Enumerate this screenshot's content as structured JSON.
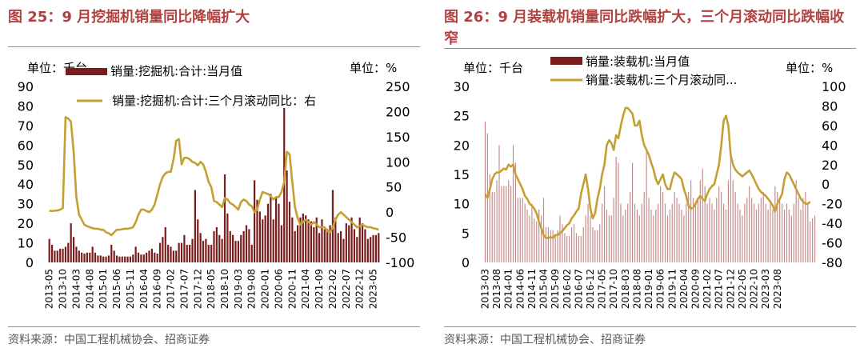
{
  "panels": [
    {
      "title": "图 25：9 月挖掘机销量同比降幅扩大",
      "source": "资料来源：中国工程机械协会、招商证券",
      "unit_left": "单位：千台",
      "unit_right": "单位：%",
      "legend": [
        "销量:挖掘机:合计:当月值",
        "销量:挖掘机:合计:三个月滚动同比：右"
      ]
    },
    {
      "title": "图 26：9 月装载机销量同比跌幅扩大，三个月滚动同比跌幅收窄",
      "source": "资料来源：中国工程机械协会、招商证券",
      "unit_left": "单位：千台",
      "unit_right": "单位：%",
      "legend": [
        "销量:装载机:当月值",
        "销量:装载机:三个月滚动同..."
      ]
    }
  ],
  "chart_data": [
    {
      "type": "bar",
      "title": "9 月挖掘机销量同比降幅扩大",
      "series": [
        {
          "name": "销量:挖掘机:合计:当月值",
          "axis": "left",
          "values": [
            12.0,
            9.0,
            6.0,
            6.0,
            7.0,
            7.0,
            8.0,
            10.0,
            20.0,
            13.0,
            8.0,
            6.0,
            5.0,
            4.5,
            5.0,
            5.0,
            8.0,
            5.0,
            3.5,
            3.5,
            3.0,
            3.0,
            3.5,
            9.0,
            6.0,
            3.5,
            3.0,
            3.0,
            3.0,
            3.0,
            3.0,
            4.0,
            8.0,
            5.0,
            4.0,
            4.0,
            5.0,
            6.0,
            7.0,
            5.0,
            4.5,
            10.0,
            13.0,
            18.0,
            9.0,
            8.0,
            6.0,
            6.0,
            10.0,
            10.0,
            14.0,
            9.0,
            9.0,
            12.0,
            37.0,
            22.0,
            15.0,
            11.0,
            12.0,
            9.0,
            9.0,
            16.0,
            18.0,
            14.0,
            12.0,
            45.0,
            25.0,
            16.0,
            14.0,
            11.0,
            11.0,
            14.0,
            16.0,
            19.0,
            17.0,
            9.0,
            42.0,
            32.0,
            26.0,
            22.0,
            24.0,
            30.0,
            35.0,
            22.0,
            33.0,
            30.0,
            19.0,
            79.0,
            47.0,
            31.0,
            23.0,
            16.0,
            19.0,
            23.0,
            25.0,
            24.0,
            22.0,
            21.0,
            18.0,
            23.0,
            15.0,
            22.0,
            17.0,
            17.0,
            19.0,
            37.0,
            23.0,
            15.0,
            16.0,
            12.0,
            20.0,
            19.0,
            23.0,
            17.0,
            13.0,
            23.0,
            20.0,
            17.0,
            12.0,
            13.0,
            14.0,
            14.0,
            15.0
          ]
        },
        {
          "name": "销量:挖掘机:合计:三个月滚动同比：右",
          "axis": "right",
          "values": [
            3.0,
            2.0,
            3.0,
            3.0,
            5.0,
            8.0,
            189.0,
            186.0,
            180.0,
            120.0,
            30.0,
            -5.0,
            -15.0,
            -25.0,
            -28.0,
            -30.0,
            -32.0,
            -33.0,
            -33.0,
            -35.0,
            -35.0,
            -40.0,
            -42.0,
            -46.0,
            -40.0,
            -35.0,
            -35.0,
            -34.0,
            -33.0,
            -33.0,
            -32.0,
            -30.0,
            -20.0,
            -5.0,
            5.0,
            5.0,
            2.0,
            0.0,
            5.0,
            15.0,
            35.0,
            55.0,
            70.0,
            77.0,
            80.0,
            80.0,
            105.0,
            142.0,
            145.0,
            95.0,
            108.0,
            108.0,
            105.0,
            100.0,
            98.0,
            93.0,
            100.0,
            95.0,
            80.0,
            60.0,
            50.0,
            22.0,
            20.0,
            15.0,
            10.0,
            28.0,
            25.0,
            18.0,
            15.0,
            10.0,
            5.0,
            20.0,
            25.0,
            22.0,
            15.0,
            12.0,
            0.0,
            5.0,
            25.0,
            40.0,
            38.0,
            36.0,
            32.0,
            25.0,
            30.0,
            30.0,
            40.0,
            60.0,
            120.0,
            115.0,
            60.0,
            10.0,
            -12.0,
            -25.0,
            -20.0,
            -15.0,
            -20.0,
            -25.0,
            -20.0,
            -25.0,
            -30.0,
            -30.0,
            -30.0,
            -38.0,
            -40.0,
            -30.0,
            -15.0,
            -5.0,
            0.0,
            -5.0,
            -10.0,
            -15.0,
            -20.0,
            -25.0,
            -30.0,
            -28.0,
            -25.0,
            -28.0,
            -30.0,
            -30.0,
            -32.0,
            -33.0,
            -35.0
          ]
        }
      ],
      "x_tick_labels": [
        "2013-05",
        "2013-10",
        "2014-03",
        "2014-08",
        "2015-01",
        "2015-06",
        "2015-11",
        "2016-04",
        "2016-09",
        "2017-02",
        "2017-07",
        "2017-12",
        "2018-05",
        "2018-10",
        "2019-03",
        "2019-08",
        "2020-01",
        "2020-06",
        "2020-11",
        "2021-04",
        "2021-09",
        "2022-02",
        "2022-07",
        "2022-12",
        "2023-05"
      ],
      "x_tick_interval_months": 5,
      "left_axis": {
        "ylim": [
          0,
          90
        ],
        "ticks": [
          0,
          10,
          20,
          30,
          40,
          50,
          60,
          70,
          80,
          90
        ]
      },
      "right_axis": {
        "ylim": [
          -100,
          250
        ],
        "ticks": [
          -100,
          -50,
          0,
          50,
          100,
          150,
          200,
          250
        ],
        "negative_tick_color": "#ff0000"
      },
      "colors": {
        "bars": "#7b1c1c",
        "line": "#c4a032"
      }
    },
    {
      "type": "bar",
      "title": "9 月装载机销量同比跌幅扩大，三个月滚动同比跌幅收窄",
      "series": [
        {
          "name": "销量:装载机:当月值",
          "axis": "left",
          "values": [
            24.0,
            22.0,
            15.0,
            12.0,
            12.0,
            14.0,
            20.0,
            13.0,
            13.0,
            13.0,
            14.0,
            13.0,
            20.0,
            17.0,
            11.0,
            11.0,
            11.0,
            10.0,
            9.0,
            8.0,
            10.0,
            7.5,
            7.0,
            9.0,
            8.0,
            11.0,
            6.0,
            6.0,
            5.5,
            5.5,
            4.5,
            5.5,
            8.0,
            6.5,
            5.0,
            4.5,
            4.5,
            6.0,
            6.5,
            5.0,
            4.5,
            4.5,
            6.0,
            8.0,
            10.0,
            8.0,
            6.0,
            5.5,
            5.5,
            6.5,
            10.0,
            13.0,
            9.0,
            8.0,
            8.0,
            11.0,
            18.0,
            17.0,
            10.0,
            8.0,
            9.0,
            10.0,
            12.0,
            17.0,
            10.0,
            9.0,
            8.0,
            10.0,
            12.0,
            19.0,
            11.0,
            9.0,
            8.0,
            9.0,
            10.0,
            13.0,
            12.0,
            10.0,
            8.0,
            9.0,
            10.0,
            12.0,
            11.0,
            10.0,
            9.0,
            8.0,
            10.0,
            12.0,
            14.0,
            11.0,
            10.0,
            11.0,
            14.0,
            16.0,
            13.0,
            10.0,
            11.0,
            10.0,
            9.0,
            11.0,
            13.0,
            12.0,
            10.0,
            9.0,
            14.0,
            18.0,
            14.0,
            12.0,
            10.0,
            9.0,
            8.0,
            10.0,
            11.0,
            13.0,
            11.0,
            10.0,
            9.0,
            10.0,
            11.0,
            12.0,
            10.0,
            9.0,
            10.0,
            9.0,
            13.0,
            12.0,
            11.0,
            10.0,
            9.0,
            10.0,
            9.0,
            8.0,
            10.0,
            14.0,
            11.0,
            9.0,
            11.0,
            12.0,
            10.0,
            7.0,
            7.5,
            8.0
          ]
        },
        {
          "name": "销量:装载机:三个月滚动同...",
          "axis": "right",
          "values": [
            -10.0,
            -14.0,
            -5.0,
            5.0,
            10.0,
            12.0,
            12.0,
            14.0,
            16.0,
            15.0,
            20.0,
            18.0,
            20.0,
            10.0,
            5.0,
            0.0,
            -5.0,
            -12.0,
            -15.0,
            -20.0,
            -22.0,
            -25.0,
            -30.0,
            -38.0,
            -45.0,
            -52.0,
            -55.0,
            -55.0,
            -54.0,
            -55.0,
            -52.0,
            -52.0,
            -50.0,
            -48.0,
            -45.0,
            -42.0,
            -40.0,
            -35.0,
            -32.0,
            -28.0,
            -25.0,
            -10.0,
            0.0,
            10.0,
            -5.0,
            -25.0,
            -35.0,
            -30.0,
            -15.0,
            -5.0,
            10.0,
            20.0,
            40.0,
            45.0,
            42.0,
            35.0,
            50.0,
            47.0,
            60.0,
            70.0,
            78.0,
            78.0,
            75.0,
            72.0,
            60.0,
            60.0,
            65.0,
            50.0,
            40.0,
            35.0,
            30.0,
            22.0,
            15.0,
            5.0,
            0.0,
            5.0,
            10.0,
            0.0,
            -5.0,
            -5.0,
            5.0,
            12.0,
            10.0,
            8.0,
            5.0,
            -5.0,
            -12.0,
            -22.0,
            -25.0,
            -24.0,
            -20.0,
            -15.0,
            -12.0,
            -15.0,
            -17.0,
            -10.0,
            -5.0,
            -2.0,
            0.0,
            10.0,
            20.0,
            40.0,
            65.0,
            70.0,
            60.0,
            30.0,
            20.0,
            15.0,
            12.0,
            10.0,
            8.0,
            10.0,
            12.0,
            14.0,
            10.0,
            5.0,
            0.0,
            -5.0,
            -8.0,
            -10.0,
            -12.0,
            -15.0,
            -18.0,
            -22.0,
            -28.0,
            -20.0,
            -15.0,
            -10.0,
            5.0,
            12.0,
            10.0,
            5.0,
            0.0,
            -5.0,
            -10.0,
            -15.0,
            -18.0,
            -20.0,
            -20.0,
            -18.0
          ]
        }
      ],
      "x_tick_labels": [
        "2013-03",
        "2013-08",
        "2014-01",
        "2014-06",
        "2014-11",
        "2015-04",
        "2015-09",
        "2016-02",
        "2016-07",
        "2016-12",
        "2017-05",
        "2017-10",
        "2018-03",
        "2018-08",
        "2019-01",
        "2019-06",
        "2019-11",
        "2020-04",
        "2020-09",
        "2021-02",
        "2021-07",
        "2021-12",
        "2022-05",
        "2022-10",
        "2023-03",
        "2023-08"
      ],
      "x_tick_interval_months": 5,
      "left_axis": {
        "ylim": [
          0,
          30
        ],
        "ticks": [
          0,
          5,
          10,
          15,
          20,
          25,
          30
        ]
      },
      "right_axis": {
        "ylim": [
          -80,
          100
        ],
        "ticks": [
          -80,
          -60,
          -40,
          -20,
          0,
          20,
          40,
          60,
          80,
          100
        ]
      },
      "colors": {
        "bars": "#c98c8c",
        "line": "#c4a032",
        "legend_bar": "#7b1c1c"
      }
    }
  ]
}
